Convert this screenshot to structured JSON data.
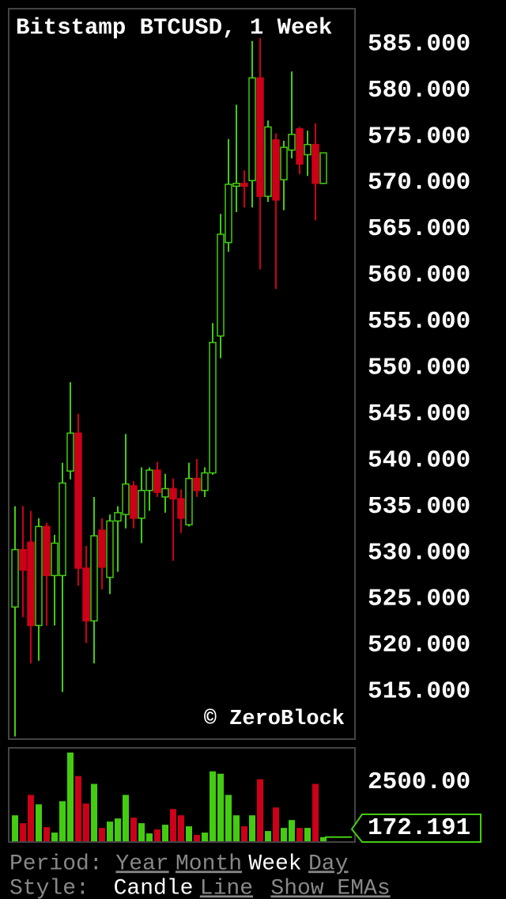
{
  "chart_data": {
    "type": "candlestick",
    "title": "Bitstamp BTCUSD, 1 Week",
    "watermark": "© ZeroBlock",
    "up_color": "#44cc11",
    "down_color": "#cc0018",
    "open": [
      524.1,
      530.3,
      531.1,
      522.1,
      532.8,
      527.5,
      527.5,
      538.8,
      542.9,
      528.3,
      522.6,
      532.4,
      527.3,
      533.4,
      534.1,
      537.2,
      533.7,
      536.7,
      538.9,
      536.0,
      536.9,
      535.8,
      533.0,
      538.0,
      536.7,
      538.6,
      553.4,
      563.5,
      569.6,
      569.9,
      570.2,
      581.3,
      568.5,
      574.6,
      570.3,
      573.5,
      575.8,
      573.0,
      574.1,
      569.9
    ],
    "high": [
      535.0,
      535.0,
      534.5,
      533.7,
      533.2,
      531.9,
      539.7,
      548.4,
      545.0,
      530.7,
      536.0,
      533.7,
      534.1,
      535.0,
      542.8,
      537.7,
      539.2,
      539.2,
      539.8,
      538.5,
      538.0,
      536.8,
      539.7,
      540.1,
      539.2,
      554.8,
      566.6,
      574.7,
      578.4,
      571.3,
      585.3,
      585.6,
      576.7,
      575.3,
      574.5,
      582.0,
      576.0,
      575.6,
      576.4,
      573.2
    ],
    "low": [
      510.1,
      523.0,
      518.0,
      518.3,
      522.1,
      522.1,
      514.9,
      537.9,
      526.4,
      520.2,
      518.0,
      526.0,
      525.5,
      527.9,
      532.6,
      532.6,
      531.0,
      534.5,
      536.0,
      534.3,
      529.1,
      532.1,
      532.8,
      536.0,
      536.0,
      538.4,
      551.0,
      562.5,
      566.8,
      567.3,
      567.3,
      560.6,
      567.9,
      558.5,
      567.0,
      572.6,
      570.9,
      570.7,
      565.9,
      569.9
    ],
    "close": [
      530.3,
      528.1,
      522.1,
      532.8,
      527.5,
      531.0,
      537.5,
      542.9,
      528.3,
      522.6,
      531.8,
      528.4,
      533.4,
      534.3,
      537.4,
      533.7,
      536.7,
      538.9,
      536.5,
      536.9,
      535.8,
      533.7,
      538.0,
      536.7,
      538.6,
      552.7,
      564.4,
      569.8,
      569.9,
      569.6,
      581.3,
      568.5,
      576.0,
      568.1,
      573.8,
      575.2,
      572.0,
      574.1,
      569.9,
      573.2
    ],
    "ylim": [
      509.9,
      588.7
    ],
    "yticks": [
      {
        "value": 585,
        "label": "585.000"
      },
      {
        "value": 580,
        "label": "580.000"
      },
      {
        "value": 575,
        "label": "575.000"
      },
      {
        "value": 570,
        "label": "570.000"
      },
      {
        "value": 565,
        "label": "565.000"
      },
      {
        "value": 560,
        "label": "560.000"
      },
      {
        "value": 555,
        "label": "555.000"
      },
      {
        "value": 550,
        "label": "550.000"
      },
      {
        "value": 545,
        "label": "545.000"
      },
      {
        "value": 540,
        "label": "540.000"
      },
      {
        "value": 535,
        "label": "535.000"
      },
      {
        "value": 530,
        "label": "530.000"
      },
      {
        "value": 525,
        "label": "525.000"
      },
      {
        "value": 520,
        "label": "520.000"
      },
      {
        "value": 515,
        "label": "515.000"
      }
    ],
    "volume": {
      "values": [
        1086,
        757,
        1941,
        1546,
        592,
        362,
        1678,
        3717,
        2731,
        1579,
        2402,
        559,
        822,
        954,
        1941,
        987,
        757,
        329,
        493,
        691,
        1349,
        1086,
        625,
        263,
        362,
        2928,
        2829,
        1941,
        1086,
        625,
        1086,
        2599,
        428,
        1415,
        559,
        888,
        559,
        559,
        2402,
        172.191
      ],
      "ylim": [
        0,
        3880
      ],
      "yticks": [
        {
          "value": 2500,
          "label": "2500.00"
        }
      ],
      "last": 172.191
    }
  },
  "controls": {
    "period_label": "Period:",
    "periods": [
      "Year",
      "Month",
      "Week",
      "Day"
    ],
    "selected_period": "Week",
    "style_label": "Style:",
    "styles": [
      "Candle",
      "Line",
      "Show EMAs"
    ],
    "selected_style": "Candle"
  }
}
